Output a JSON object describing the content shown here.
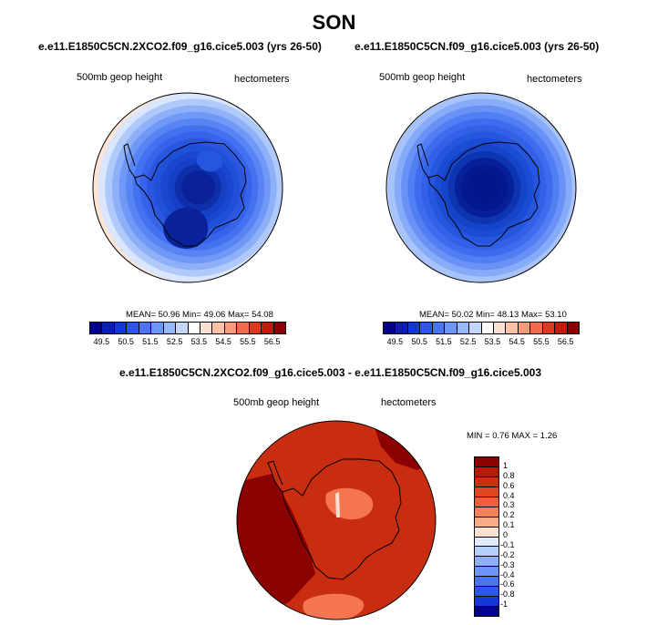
{
  "figure": {
    "title": "SON"
  },
  "panels": {
    "left": {
      "case": "e.e11.E1850C5CN.2XCO2.f09_g16.cice5.003 (yrs 26-50)",
      "variable": "500mb geop height",
      "units": "hectometers",
      "stats": "MEAN=  50.96  Min=  49.06  Max=  54.08",
      "colorbar_ticks": [
        "49.5",
        "50.5",
        "51.5",
        "52.5",
        "53.5",
        "54.5",
        "55.5",
        "56.5"
      ],
      "colorbar_colors": [
        "#00008b",
        "#0a1cb4",
        "#1438d6",
        "#2b55ec",
        "#4a74f5",
        "#6b95f8",
        "#96b9fb",
        "#c3d6fd",
        "#ffffff",
        "#fde1d0",
        "#fcc1a5",
        "#f99a78",
        "#f16a49",
        "#dc3b1f",
        "#bf1d0b",
        "#8b0000"
      ]
    },
    "right": {
      "case": "e.e11.E1850C5CN.f09_g16.cice5.003 (yrs 26-50)",
      "variable": "500mb geop height",
      "units": "hectometers",
      "stats": "MEAN=  50.02  Min=  48.13  Max=  53.10",
      "colorbar_ticks": [
        "49.5",
        "50.5",
        "51.5",
        "52.5",
        "53.5",
        "54.5",
        "55.5",
        "56.5"
      ],
      "colorbar_colors": [
        "#00008b",
        "#0a1cb4",
        "#1438d6",
        "#2b55ec",
        "#4a74f5",
        "#6b95f8",
        "#96b9fb",
        "#c3d6fd",
        "#ffffff",
        "#fde1d0",
        "#fcc1a5",
        "#f99a78",
        "#f16a49",
        "#dc3b1f",
        "#bf1d0b",
        "#8b0000"
      ]
    },
    "diff": {
      "case": "e.e11.E1850C5CN.2XCO2.f09_g16.cice5.003 - e.e11.E1850C5CN.f09_g16.cice5.003",
      "variable": "500mb geop height",
      "units": "hectometers",
      "stats": "MIN =    0.76 MAX =   1.26",
      "colorbar_ticks": [
        "1",
        "0.8",
        "0.6",
        "0.4",
        "0.3",
        "0.2",
        "0.1",
        "0",
        "-0.1",
        "-0.2",
        "-0.3",
        "-0.4",
        "-0.6",
        "-0.8",
        "-1"
      ],
      "colorbar_colors": [
        "#8b0000",
        "#b71a08",
        "#cd2e10",
        "#e1461f",
        "#f06037",
        "#f78258",
        "#fbab87",
        "#fde1d0",
        "#e0ecfe",
        "#b7cffc",
        "#8db0f9",
        "#6b95f8",
        "#4a74f5",
        "#2b55ec",
        "#1438d6",
        "#00008b"
      ]
    }
  },
  "map_colors": {
    "ring_left": [
      "#fde4d4",
      "#d9e6fd",
      "#b0c9fb",
      "#8eb0f9",
      "#6f98f7",
      "#5884f4",
      "#4371f0",
      "#3563ea",
      "#2b57e0",
      "#2150d8",
      "#1a47cf",
      "#1540c6",
      "#0e2fa8",
      "#0a2299"
    ],
    "ring_right": [
      "#d1e0fd",
      "#a8c3fb",
      "#86abf8",
      "#6991f6",
      "#527ef3",
      "#3f6cee",
      "#3261e8",
      "#2656de",
      "#1d4cd4",
      "#1544c9",
      "#0d35b0",
      "#07209a",
      "#041890",
      "#04168a"
    ],
    "diff_base": "#c82d10",
    "diff_dark": "#8b0000",
    "diff_light": "#f4754f",
    "diff_pale": "#fde1d0",
    "coast": "#000000"
  }
}
